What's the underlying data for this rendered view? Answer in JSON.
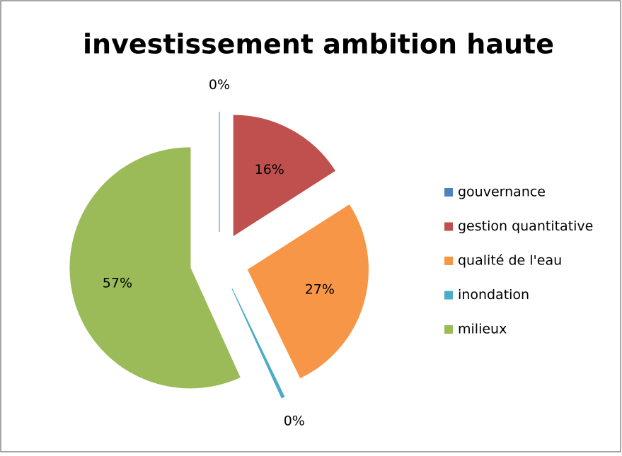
{
  "chart_data": {
    "type": "pie",
    "title": "investissement ambition haute",
    "categories": [
      "gouvernance",
      "gestion quantitative",
      "qualité de l'eau",
      "inondation",
      "milieux"
    ],
    "values": [
      0,
      16,
      27,
      0.4,
      57
    ],
    "value_labels": [
      "0%",
      "16%",
      "27%",
      "0%",
      "57%"
    ],
    "colors": [
      "#4f81bd",
      "#c0504d",
      "#f79646",
      "#4bacc6",
      "#9bbb59"
    ],
    "legend": "right"
  }
}
